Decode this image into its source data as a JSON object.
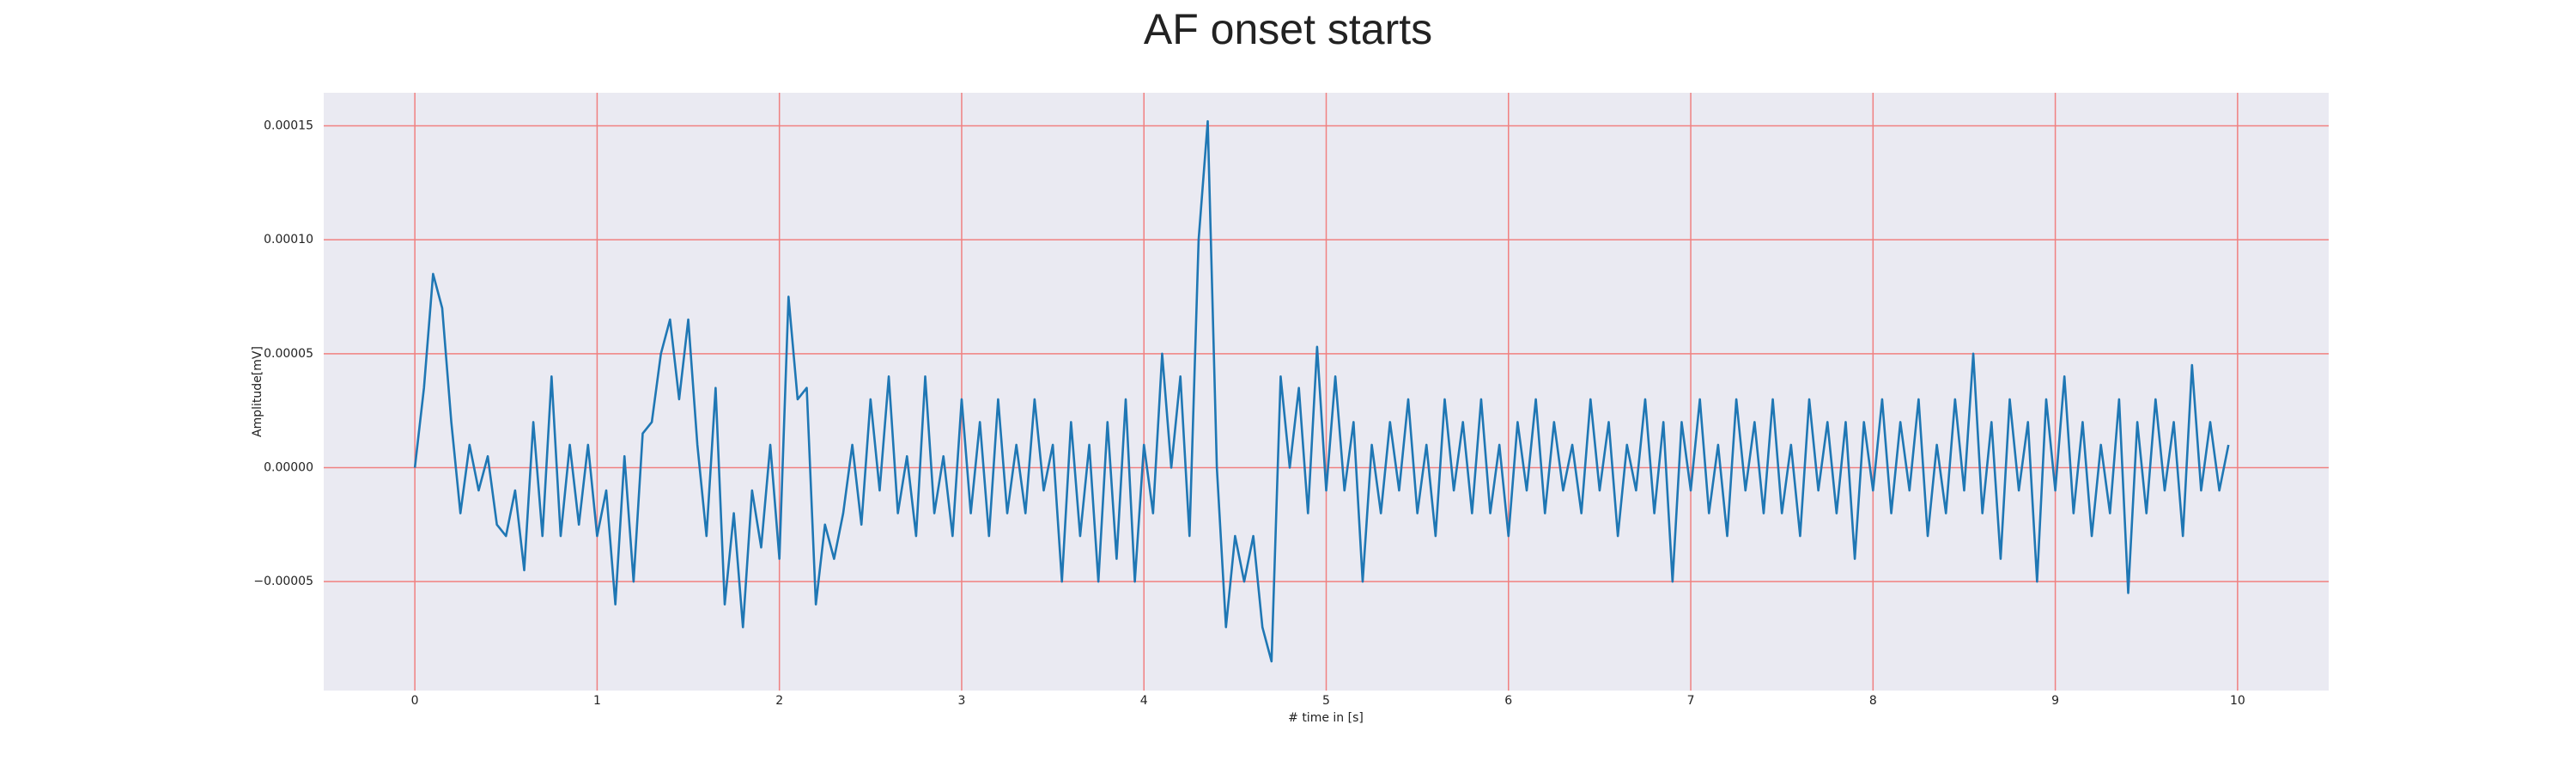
{
  "chart_data": {
    "type": "line",
    "title": "AF onset starts",
    "xlabel": "# time in [s]",
    "ylabel": "Amplitude[mV]",
    "color": "#1f77b4",
    "grid": true,
    "xlim": [
      -0.5,
      10.5
    ],
    "xticks": [
      0,
      1,
      2,
      3,
      4,
      5,
      6,
      7,
      8,
      9,
      10
    ],
    "ylim": [
      -9.78e-05,
      0.0001645
    ],
    "yticks": [
      {
        "value": -5e-05,
        "label": "−0.00005"
      },
      {
        "value": 0,
        "label": "0.00000"
      },
      {
        "value": 5e-05,
        "label": "0.00005"
      },
      {
        "value": 0.0001,
        "label": "0.00010"
      },
      {
        "value": 0.00015,
        "label": "0.00015"
      }
    ],
    "x": [
      0,
      0.05,
      0.1,
      0.15,
      0.2,
      0.25,
      0.3,
      0.35,
      0.4,
      0.45,
      0.5,
      0.55,
      0.6,
      0.65,
      0.7,
      0.75,
      0.8,
      0.85,
      0.9,
      0.95,
      1,
      1.05,
      1.1,
      1.15,
      1.2,
      1.25,
      1.3,
      1.35,
      1.4,
      1.45,
      1.5,
      1.55,
      1.6,
      1.65,
      1.7,
      1.75,
      1.8,
      1.85,
      1.9,
      1.95,
      2,
      2.05,
      2.1,
      2.15,
      2.2,
      2.25,
      2.3,
      2.35,
      2.4,
      2.45,
      2.5,
      2.55,
      2.6,
      2.65,
      2.7,
      2.75,
      2.8,
      2.85,
      2.9,
      2.95,
      3,
      3.05,
      3.1,
      3.15,
      3.2,
      3.25,
      3.3,
      3.35,
      3.4,
      3.45,
      3.5,
      3.55,
      3.6,
      3.65,
      3.7,
      3.75,
      3.8,
      3.85,
      3.9,
      3.95,
      4,
      4.05,
      4.1,
      4.15,
      4.2,
      4.25,
      4.3,
      4.35,
      4.4,
      4.45,
      4.5,
      4.55,
      4.6,
      4.65,
      4.7,
      4.75,
      4.8,
      4.85,
      4.9,
      4.95,
      5,
      5.05,
      5.1,
      5.15,
      5.2,
      5.25,
      5.3,
      5.35,
      5.4,
      5.45,
      5.5,
      5.55,
      5.6,
      5.65,
      5.7,
      5.75,
      5.8,
      5.85,
      5.9,
      5.95,
      6,
      6.05,
      6.1,
      6.15,
      6.2,
      6.25,
      6.3,
      6.35,
      6.4,
      6.45,
      6.5,
      6.55,
      6.6,
      6.65,
      6.7,
      6.75,
      6.8,
      6.85,
      6.9,
      6.95,
      7,
      7.05,
      7.1,
      7.15,
      7.2,
      7.25,
      7.3,
      7.35,
      7.4,
      7.45,
      7.5,
      7.55,
      7.6,
      7.65,
      7.7,
      7.75,
      7.8,
      7.85,
      7.9,
      7.95,
      8,
      8.05,
      8.1,
      8.15,
      8.2,
      8.25,
      8.3,
      8.35,
      8.4,
      8.45,
      8.5,
      8.55,
      8.6,
      8.65,
      8.7,
      8.75,
      8.8,
      8.85,
      8.9,
      8.95,
      9,
      9.05,
      9.1,
      9.15,
      9.2,
      9.25,
      9.3,
      9.35,
      9.4,
      9.45,
      9.5,
      9.55,
      9.6,
      9.65,
      9.7,
      9.75,
      9.8,
      9.85,
      9.9,
      9.95
    ],
    "values": [
      0,
      3.5e-05,
      8.5e-05,
      7e-05,
      2e-05,
      -2e-05,
      1e-05,
      -1e-05,
      5e-06,
      -2.5e-05,
      -3e-05,
      -1e-05,
      -4.5e-05,
      2e-05,
      -3e-05,
      4e-05,
      -3e-05,
      1e-05,
      -2.5e-05,
      1e-05,
      -3e-05,
      -1e-05,
      -6e-05,
      5e-06,
      -5e-05,
      1.5e-05,
      2e-05,
      5e-05,
      6.5e-05,
      3e-05,
      6.5e-05,
      1e-05,
      -3e-05,
      3.5e-05,
      -6e-05,
      -2e-05,
      -7e-05,
      -1e-05,
      -3.5e-05,
      1e-05,
      -4e-05,
      7.5e-05,
      3e-05,
      3.5e-05,
      -6e-05,
      -2.5e-05,
      -4e-05,
      -2e-05,
      1e-05,
      -2.5e-05,
      3e-05,
      -1e-05,
      4e-05,
      -2e-05,
      5e-06,
      -3e-05,
      4e-05,
      -2e-05,
      5e-06,
      -3e-05,
      3e-05,
      -2e-05,
      2e-05,
      -3e-05,
      3e-05,
      -2e-05,
      1e-05,
      -2e-05,
      3e-05,
      -1e-05,
      1e-05,
      -5e-05,
      2e-05,
      -3e-05,
      1e-05,
      -5e-05,
      2e-05,
      -4e-05,
      3e-05,
      -5e-05,
      1e-05,
      -2e-05,
      5e-05,
      0,
      4e-05,
      -3e-05,
      0.0001,
      0.000152,
      0,
      -7e-05,
      -3e-05,
      -5e-05,
      -3e-05,
      -7e-05,
      -8.5e-05,
      4e-05,
      0,
      3.5e-05,
      -2e-05,
      5.3e-05,
      -1e-05,
      4e-05,
      -1e-05,
      2e-05,
      -5e-05,
      1e-05,
      -2e-05,
      2e-05,
      -1e-05,
      3e-05,
      -2e-05,
      1e-05,
      -3e-05,
      3e-05,
      -1e-05,
      2e-05,
      -2e-05,
      3e-05,
      -2e-05,
      1e-05,
      -3e-05,
      2e-05,
      -1e-05,
      3e-05,
      -2e-05,
      2e-05,
      -1e-05,
      1e-05,
      -2e-05,
      3e-05,
      -1e-05,
      2e-05,
      -3e-05,
      1e-05,
      -1e-05,
      3e-05,
      -2e-05,
      2e-05,
      -5e-05,
      2e-05,
      -1e-05,
      3e-05,
      -2e-05,
      1e-05,
      -3e-05,
      3e-05,
      -1e-05,
      2e-05,
      -2e-05,
      3e-05,
      -2e-05,
      1e-05,
      -3e-05,
      3e-05,
      -1e-05,
      2e-05,
      -2e-05,
      2e-05,
      -4e-05,
      2e-05,
      -1e-05,
      3e-05,
      -2e-05,
      2e-05,
      -1e-05,
      3e-05,
      -3e-05,
      1e-05,
      -2e-05,
      3e-05,
      -1e-05,
      5e-05,
      -2e-05,
      2e-05,
      -4e-05,
      3e-05,
      -1e-05,
      2e-05,
      -5e-05,
      3e-05,
      -1e-05,
      4e-05,
      -2e-05,
      2e-05,
      -3e-05,
      1e-05,
      -2e-05,
      3e-05,
      -5.5e-05,
      2e-05,
      -2e-05,
      3e-05,
      -1e-05,
      2e-05,
      -3e-05,
      4.5e-05,
      -1e-05,
      2e-05,
      -1e-05,
      1e-05
    ]
  }
}
